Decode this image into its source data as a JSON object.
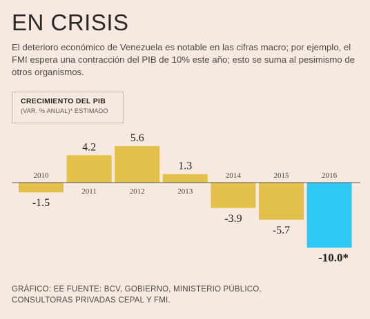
{
  "header": {
    "title": "EN CRISIS",
    "subtitle": "El deterioro económico de Venezuela es notable en las cifras macro; por ejemplo, el FMI espera una contracción del PIB de 10% este año; esto se suma al pesimismo de otros organismos."
  },
  "chart_header": {
    "title": "CRECIMIENTO DEL PIB",
    "subtitle": "(VAR. % ANUAL)* ESTIMADO"
  },
  "footer": {
    "line1": "GRÁFICO: EE  FUENTE: BCV, GOBIERNO, MINISTERIO PÚBLICO,",
    "line2": "CONSULTORAS PRIVADAS CEPAL Y FMI."
  },
  "chart_data": {
    "type": "bar",
    "title": "CRECIMIENTO DEL PIB",
    "subtitle": "(VAR. % ANUAL)* ESTIMADO",
    "categories": [
      "2010",
      "2011",
      "2012",
      "2013",
      "2014",
      "2015",
      "2016"
    ],
    "values": [
      -1.5,
      4.2,
      5.6,
      1.3,
      -3.9,
      -5.7,
      -10.0
    ],
    "value_labels": [
      "-1.5",
      "4.2",
      "5.6",
      "1.3",
      "-3.9",
      "-5.7",
      "-10.0*"
    ],
    "colors": [
      "#e2c04a",
      "#e2c04a",
      "#e2c04a",
      "#e2c04a",
      "#e2c04a",
      "#e2c04a",
      "#2ec8f5"
    ],
    "ylim": [
      -10,
      5.6
    ],
    "grid": false,
    "xlabel": "",
    "ylabel": ""
  }
}
